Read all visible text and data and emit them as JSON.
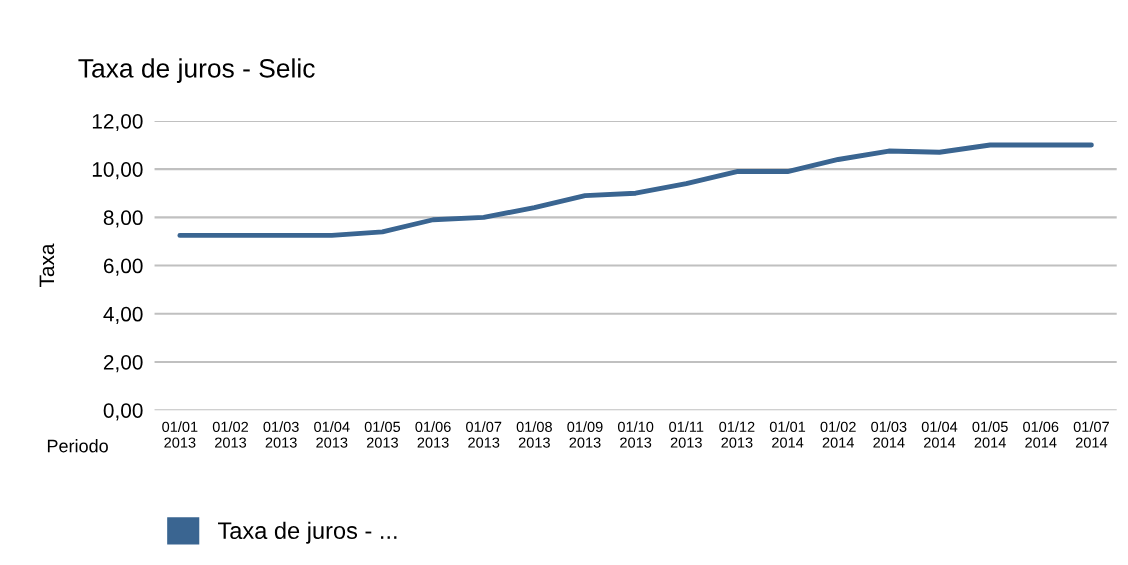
{
  "chart_data": {
    "type": "line",
    "title": "Taxa de juros - Selic",
    "xlabel": "Periodo",
    "ylabel": "Taxa",
    "categories": [
      "01/01\n2013",
      "01/02\n2013",
      "01/03\n2013",
      "01/04\n2013",
      "01/05\n2013",
      "01/06\n2013",
      "01/07\n2013",
      "01/08\n2013",
      "01/09\n2013",
      "01/10\n2013",
      "01/11\n2013",
      "01/12\n2013",
      "01/01\n2014",
      "01/02\n2014",
      "01/03\n2014",
      "01/04\n2014",
      "01/05\n2014",
      "01/06\n2014",
      "01/07\n2014"
    ],
    "series": [
      {
        "name": "Taxa de juros - ...",
        "color": "#3a6591",
        "values": [
          7.25,
          7.25,
          7.25,
          7.25,
          7.4,
          7.9,
          8.0,
          8.4,
          8.9,
          9.0,
          9.4,
          9.9,
          9.9,
          10.4,
          10.75,
          10.7,
          11.0,
          11.0,
          11.0
        ]
      }
    ],
    "ylim": [
      0,
      12
    ],
    "yticks": [
      {
        "value": 0,
        "label": "0,00"
      },
      {
        "value": 2,
        "label": "2,00"
      },
      {
        "value": 4,
        "label": "4,00"
      },
      {
        "value": 6,
        "label": "6,00"
      },
      {
        "value": 8,
        "label": "8,00"
      },
      {
        "value": 10,
        "label": "10,00"
      },
      {
        "value": 12,
        "label": "12,00"
      }
    ],
    "grid": "y",
    "legend": "bottom left",
    "marker": "none",
    "line_style": "solid"
  }
}
